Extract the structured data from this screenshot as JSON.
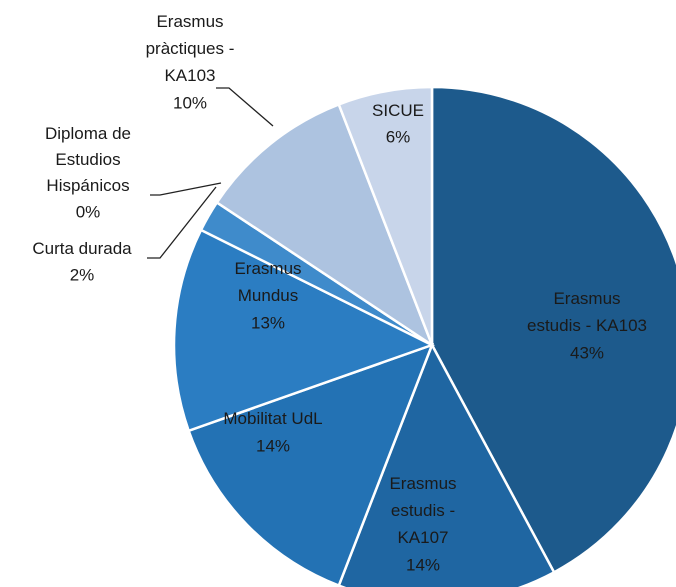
{
  "chart_data": {
    "type": "pie",
    "categories": [
      "Erasmus estudis - KA103",
      "Erasmus estudis - KA107",
      "Mobilitat UdL",
      "Erasmus Mundus",
      "Curta durada",
      "Diploma de Estudios Hispánicos",
      "Erasmus pràctiques - KA103",
      "SICUE"
    ],
    "values": [
      43,
      14,
      14,
      13,
      2,
      0,
      10,
      6
    ],
    "value_labels": [
      "43%",
      "14%",
      "14%",
      "13%",
      "2%",
      "0%",
      "10%",
      "6%"
    ],
    "colors": [
      "#1d5a8c",
      "#1f66a2",
      "#2372b4",
      "#2b7dc2",
      "#3f8bcb",
      "#6a9fd2",
      "#adc3e0",
      "#c8d5ea"
    ]
  }
}
